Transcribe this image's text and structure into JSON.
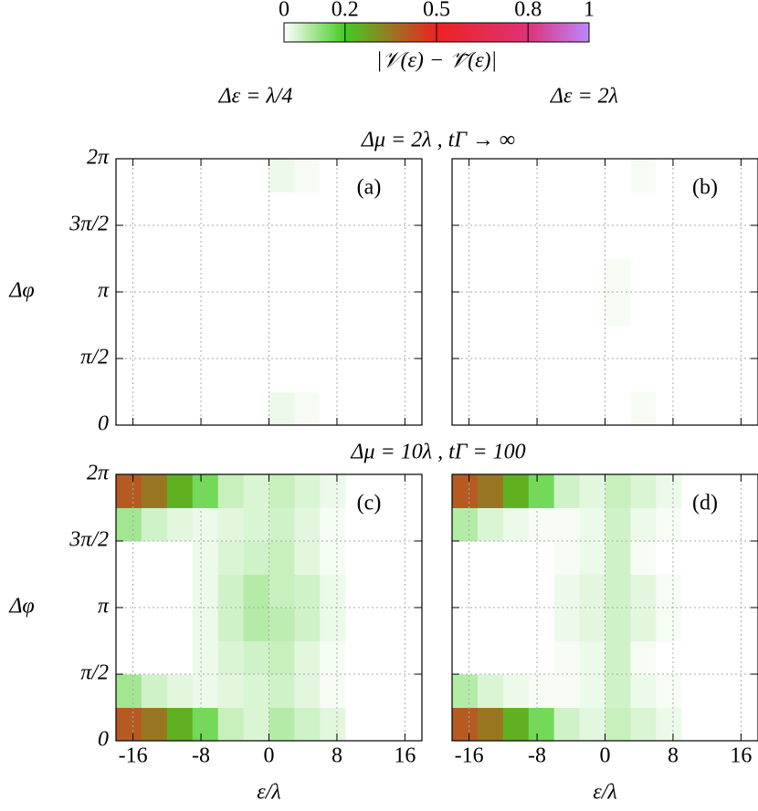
{
  "figure": {
    "column_titles": [
      "Δε = λ/4",
      "Δε = 2λ"
    ],
    "row_titles": [
      "Δμ = 2λ , tΓ → ∞",
      "Δμ = 10λ , tΓ = 100"
    ],
    "colorbar": {
      "label": "|𝒱(ε) − 𝒱̃(ε)|",
      "lim": [
        0,
        1
      ],
      "ticks": [
        0,
        0.2,
        0.5,
        0.8,
        1
      ],
      "colorscale": [
        [
          0,
          "#ffffff"
        ],
        [
          0.2,
          "#44cc22"
        ],
        [
          0.5,
          "#ee2222"
        ],
        [
          0.8,
          "#dd3377"
        ],
        [
          1,
          "#bb88ff"
        ]
      ]
    }
  },
  "chart_data": [
    {
      "type": "heatmap",
      "label": "(a)",
      "ylabel": "Δφ",
      "xlim": [
        -18,
        18
      ],
      "ylim": [
        0,
        6.2832
      ],
      "xticks": [
        -16,
        -8,
        0,
        8,
        16
      ],
      "xticklabels": false,
      "yticks": [
        0,
        {
          "value": 1.5708,
          "label": "π/2"
        },
        {
          "value": 3.1416,
          "label": "π"
        },
        {
          "value": 4.7124,
          "label": "3π/2"
        },
        {
          "value": 6.2832,
          "label": "2π"
        }
      ],
      "yticklabels": true,
      "grid": true,
      "xbins": [
        -18,
        -15,
        -12,
        -9,
        -6,
        -3,
        0,
        3,
        6,
        9,
        12,
        15,
        18
      ],
      "ybins": [
        0,
        0.7854,
        1.5708,
        2.3562,
        3.1416,
        3.927,
        4.7124,
        5.4978,
        6.2832
      ],
      "z": [
        [
          0,
          0,
          0,
          0,
          0,
          0,
          0.02,
          0.01,
          0,
          0,
          0,
          0
        ],
        [
          0,
          0,
          0,
          0,
          0,
          0,
          0,
          0,
          0,
          0,
          0,
          0
        ],
        [
          0,
          0,
          0,
          0,
          0,
          0,
          0,
          0,
          0,
          0,
          0,
          0
        ],
        [
          0,
          0,
          0,
          0,
          0,
          0,
          0,
          0,
          0,
          0,
          0,
          0
        ],
        [
          0,
          0,
          0,
          0,
          0,
          0,
          0,
          0,
          0,
          0,
          0,
          0
        ],
        [
          0,
          0,
          0,
          0,
          0,
          0,
          0,
          0,
          0,
          0,
          0,
          0
        ],
        [
          0,
          0,
          0,
          0,
          0,
          0,
          0,
          0,
          0,
          0,
          0,
          0
        ],
        [
          0,
          0,
          0,
          0,
          0,
          0,
          0.02,
          0.01,
          0,
          0,
          0,
          0
        ]
      ]
    },
    {
      "type": "heatmap",
      "label": "(b)",
      "xlim": [
        -18,
        18
      ],
      "ylim": [
        0,
        6.2832
      ],
      "xticks": [
        -16,
        -8,
        0,
        8,
        16
      ],
      "xticklabels": false,
      "yticks": [
        0,
        1.5708,
        3.1416,
        4.7124,
        6.2832
      ],
      "yticklabels": false,
      "grid": true,
      "xbins": [
        -18,
        -15,
        -12,
        -9,
        -6,
        -3,
        0,
        3,
        6,
        9,
        12,
        15,
        18
      ],
      "ybins": [
        0,
        0.7854,
        1.5708,
        2.3562,
        3.1416,
        3.927,
        4.7124,
        5.4978,
        6.2832
      ],
      "z": [
        [
          0,
          0,
          0,
          0,
          0,
          0,
          0,
          0.01,
          0,
          0,
          0,
          0
        ],
        [
          0,
          0,
          0,
          0,
          0,
          0,
          0,
          0,
          0,
          0,
          0,
          0
        ],
        [
          0,
          0,
          0,
          0,
          0,
          0,
          0,
          0,
          0,
          0,
          0,
          0
        ],
        [
          0,
          0,
          0,
          0,
          0,
          0,
          0.01,
          0,
          0,
          0,
          0,
          0
        ],
        [
          0,
          0,
          0,
          0,
          0,
          0,
          0.01,
          0,
          0,
          0,
          0,
          0
        ],
        [
          0,
          0,
          0,
          0,
          0,
          0,
          0,
          0,
          0,
          0,
          0,
          0
        ],
        [
          0,
          0,
          0,
          0,
          0,
          0,
          0,
          0,
          0,
          0,
          0,
          0
        ],
        [
          0,
          0,
          0,
          0,
          0,
          0,
          0,
          0.01,
          0,
          0,
          0,
          0
        ]
      ]
    },
    {
      "type": "heatmap",
      "label": "(c)",
      "ylabel": "Δφ",
      "xlabel": "ε/λ",
      "xlim": [
        -18,
        18
      ],
      "ylim": [
        0,
        6.2832
      ],
      "xticks": [
        -16,
        -8,
        0,
        8,
        16
      ],
      "xticklabels": true,
      "yticks": [
        0,
        {
          "value": 1.5708,
          "label": "π/2"
        },
        {
          "value": 3.1416,
          "label": "π"
        },
        {
          "value": 4.7124,
          "label": "3π/2"
        },
        {
          "value": 6.2832,
          "label": "2π"
        }
      ],
      "yticklabels": true,
      "grid": true,
      "xbins": [
        -18,
        -15,
        -12,
        -9,
        -6,
        -3,
        0,
        3,
        6,
        9,
        12,
        15,
        18
      ],
      "ybins": [
        0,
        0.7854,
        1.5708,
        2.3562,
        3.1416,
        3.927,
        4.7124,
        5.4978,
        6.2832
      ],
      "z": [
        [
          0.4,
          0.35,
          0.25,
          0.15,
          0.06,
          0.04,
          0.08,
          0.05,
          0.03,
          0,
          0,
          0
        ],
        [
          0.1,
          0.05,
          0.03,
          0.02,
          0.03,
          0.04,
          0.05,
          0.03,
          0.01,
          0,
          0,
          0
        ],
        [
          0,
          0,
          0,
          0.02,
          0.04,
          0.05,
          0.06,
          0.03,
          0.01,
          0,
          0,
          0
        ],
        [
          0,
          0,
          0,
          0.02,
          0.05,
          0.08,
          0.07,
          0.05,
          0.02,
          0,
          0,
          0
        ],
        [
          0,
          0,
          0,
          0.02,
          0.05,
          0.08,
          0.06,
          0.05,
          0.02,
          0,
          0,
          0
        ],
        [
          0,
          0,
          0,
          0.02,
          0.04,
          0.05,
          0.06,
          0.03,
          0.01,
          0,
          0,
          0
        ],
        [
          0.1,
          0.05,
          0.03,
          0.02,
          0.03,
          0.04,
          0.05,
          0.03,
          0.01,
          0,
          0,
          0
        ],
        [
          0.4,
          0.35,
          0.25,
          0.15,
          0.06,
          0.04,
          0.06,
          0.04,
          0.02,
          0,
          0,
          0
        ]
      ]
    },
    {
      "type": "heatmap",
      "label": "(d)",
      "xlabel": "ε/λ",
      "xlim": [
        -18,
        18
      ],
      "ylim": [
        0,
        6.2832
      ],
      "xticks": [
        -16,
        -8,
        0,
        8,
        16
      ],
      "xticklabels": true,
      "yticks": [
        0,
        1.5708,
        3.1416,
        4.7124,
        6.2832
      ],
      "yticklabels": false,
      "grid": true,
      "xbins": [
        -18,
        -15,
        -12,
        -9,
        -6,
        -3,
        0,
        3,
        6,
        9,
        12,
        15,
        18
      ],
      "ybins": [
        0,
        0.7854,
        1.5708,
        2.3562,
        3.1416,
        3.927,
        4.7124,
        5.4978,
        6.2832
      ],
      "z": [
        [
          0.4,
          0.35,
          0.25,
          0.15,
          0.05,
          0.03,
          0.06,
          0.04,
          0.02,
          0,
          0,
          0
        ],
        [
          0.08,
          0.04,
          0.02,
          0.01,
          0.01,
          0.02,
          0.05,
          0.02,
          0.01,
          0,
          0,
          0
        ],
        [
          0,
          0,
          0,
          0,
          0.01,
          0.02,
          0.05,
          0.01,
          0,
          0,
          0,
          0
        ],
        [
          0,
          0,
          0,
          0,
          0.02,
          0.03,
          0.05,
          0.03,
          0.01,
          0,
          0,
          0
        ],
        [
          0,
          0,
          0,
          0,
          0.02,
          0.03,
          0.05,
          0.03,
          0.01,
          0,
          0,
          0
        ],
        [
          0,
          0,
          0,
          0,
          0.01,
          0.02,
          0.05,
          0.01,
          0,
          0,
          0,
          0
        ],
        [
          0.08,
          0.04,
          0.02,
          0.01,
          0.01,
          0.02,
          0.05,
          0.02,
          0.01,
          0,
          0,
          0
        ],
        [
          0.4,
          0.35,
          0.25,
          0.15,
          0.05,
          0.03,
          0.06,
          0.04,
          0.02,
          0,
          0,
          0
        ]
      ]
    }
  ]
}
